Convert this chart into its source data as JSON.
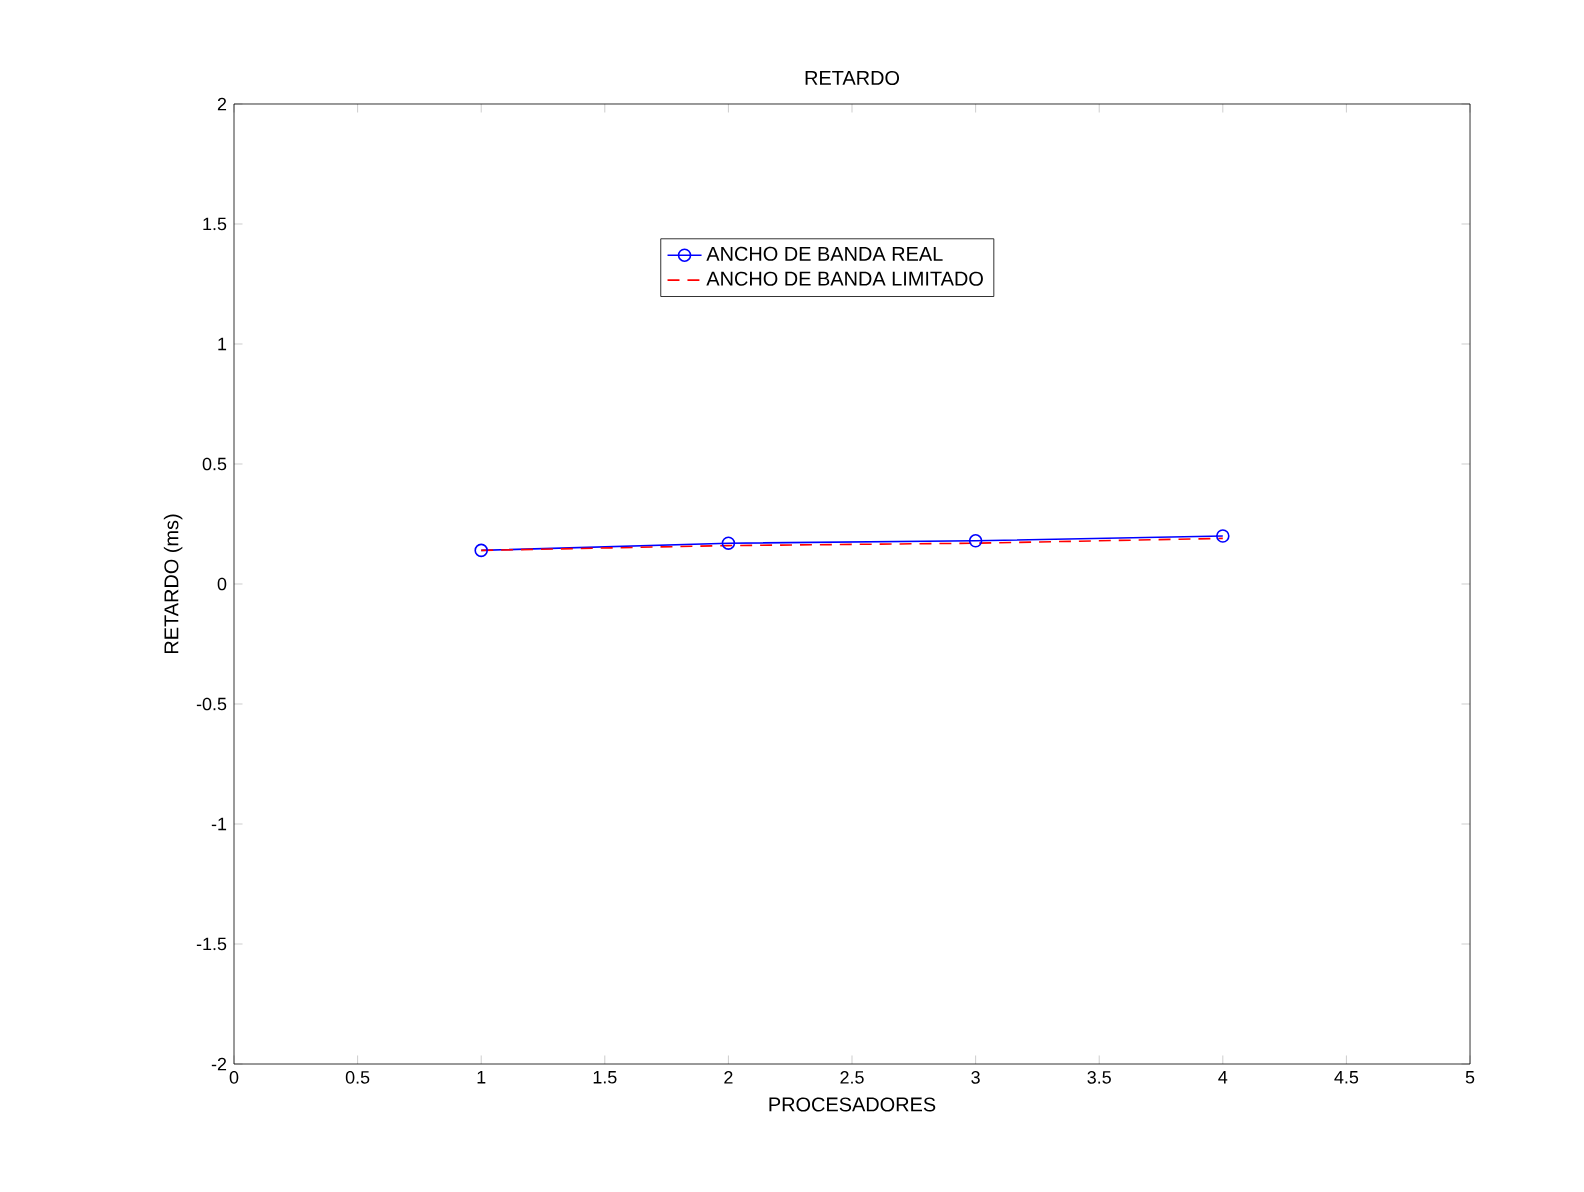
{
  "chart_data": {
    "type": "line",
    "title": "RETARDO",
    "xlabel": "PROCESADORES",
    "ylabel": "RETARDO (ms)",
    "x": [
      1,
      2,
      3,
      4
    ],
    "series": [
      {
        "name": "ANCHO DE BANDA REAL",
        "color": "#0000ff",
        "values": [
          0.14,
          0.17,
          0.18,
          0.2
        ],
        "marker": "circle",
        "line_style": "solid"
      },
      {
        "name": "ANCHO DE BANDA LIMITADO",
        "color": "#ff0000",
        "values": [
          0.14,
          0.16,
          0.17,
          0.19
        ],
        "marker": "none",
        "line_style": "dashed"
      }
    ],
    "xlim": [
      0,
      5
    ],
    "ylim": [
      -2,
      2
    ],
    "xticks": [
      0,
      0.5,
      1,
      1.5,
      2,
      2.5,
      3,
      3.5,
      4,
      4.5,
      5
    ],
    "yticks": [
      -2,
      -1.5,
      -1,
      -0.5,
      0,
      0.5,
      1,
      1.5,
      2
    ],
    "grid": false,
    "legend": "top"
  }
}
